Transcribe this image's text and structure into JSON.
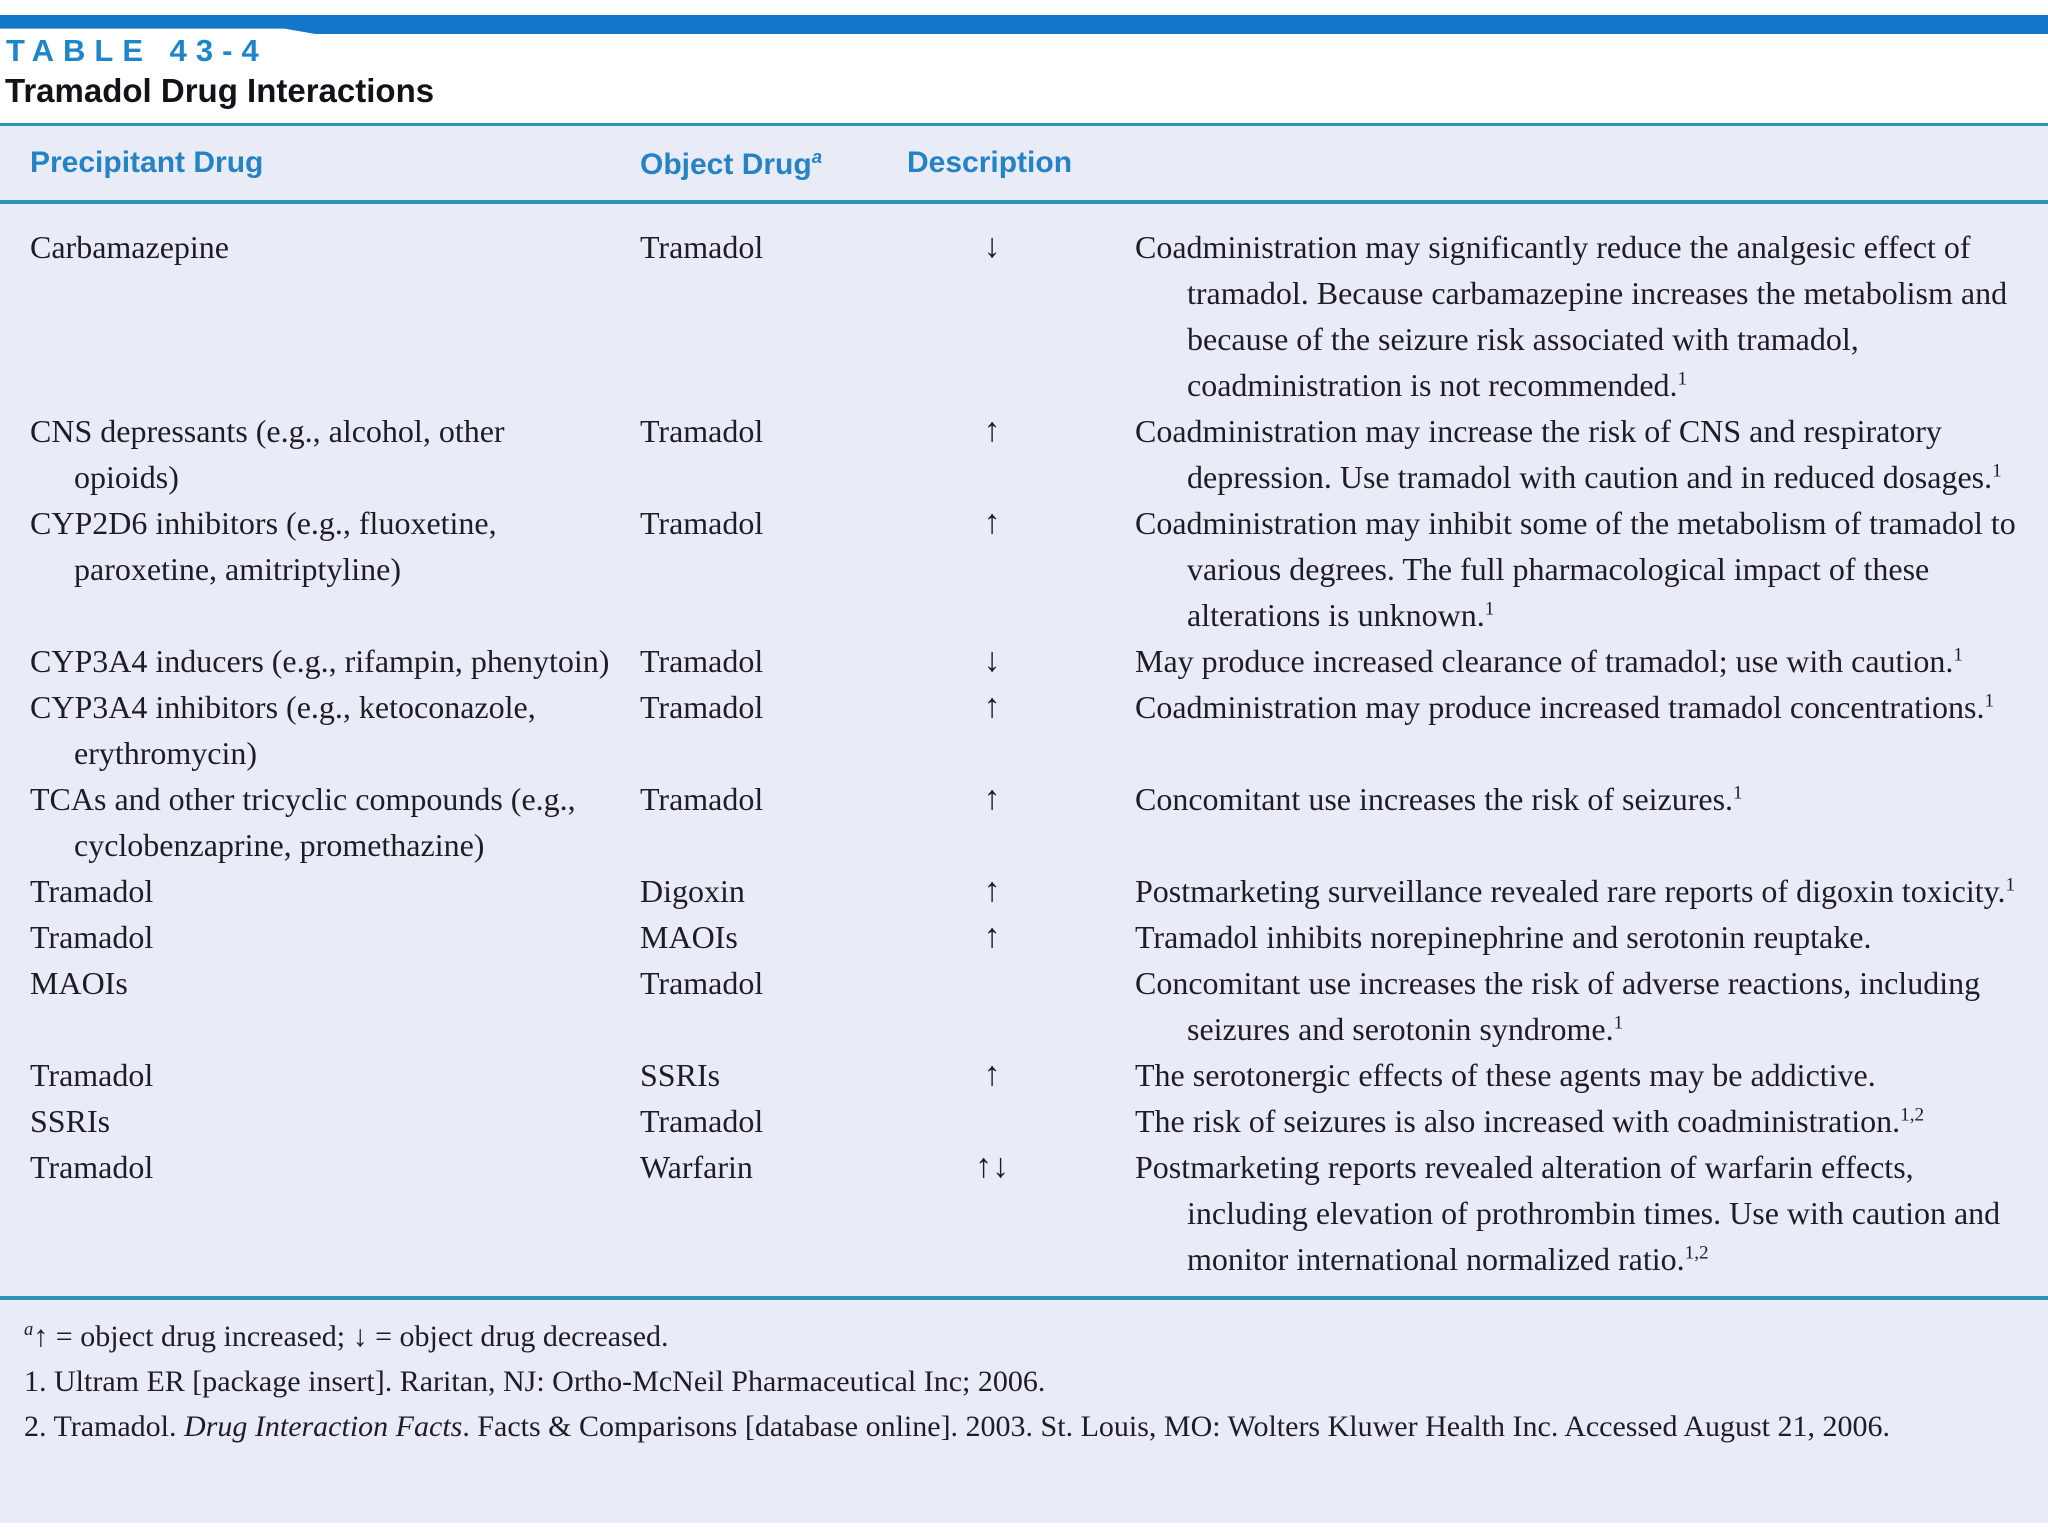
{
  "table": {
    "label": "TABLE 43-4",
    "title": "Tramadol Drug Interactions",
    "header": {
      "precipitant": "Precipitant Drug",
      "object": "Object Drug",
      "object_footnote_marker": "a",
      "description": "Description"
    },
    "rows": [
      {
        "precipitant": "Carbamazepine",
        "object": "Tramadol",
        "arrow": "↓",
        "description": "Coadministration may significantly reduce the analgesic effect of tramadol. Because carbamazepine increases the metabolism and because of the seizure risk associated with tramadol, coadministration is not recommended.",
        "refs": "1"
      },
      {
        "precipitant": "CNS depressants (e.g., alcohol, other opioids)",
        "object": "Tramadol",
        "arrow": "↑",
        "description": "Coadministration may increase the risk of CNS and respiratory depression. Use tramadol with caution and in reduced dosages.",
        "refs": "1"
      },
      {
        "precipitant": "CYP2D6 inhibitors (e.g., fluoxetine, paroxetine, amitriptyline)",
        "object": "Tramadol",
        "arrow": "↑",
        "description": "Coadministration may inhibit some of the metabolism of tramadol to various degrees. The full pharmacological impact of these alterations is unknown.",
        "refs": "1"
      },
      {
        "precipitant": "CYP3A4 inducers (e.g., rifampin, phenytoin)",
        "object": "Tramadol",
        "arrow": "↓",
        "description": "May produce increased clearance of tramadol; use with caution.",
        "refs": "1"
      },
      {
        "precipitant": "CYP3A4 inhibitors (e.g., ketoconazole, erythromycin)",
        "object": "Tramadol",
        "arrow": "↑",
        "description": "Coadministration may produce increased tramadol concentrations.",
        "refs": "1"
      },
      {
        "precipitant": "TCAs and other tricyclic compounds (e.g., cyclobenzaprine, promethazine)",
        "object": "Tramadol",
        "arrow": "↑",
        "description": "Concomitant use increases the risk of seizures.",
        "refs": "1"
      },
      {
        "precipitant": "Tramadol",
        "object": "Digoxin",
        "arrow": "↑",
        "description": "Postmarketing surveillance revealed rare reports of digoxin toxicity.",
        "refs": "1"
      },
      {
        "precipitant": "Tramadol",
        "object": "MAOIs",
        "arrow": "↑",
        "description": "Tramadol inhibits norepinephrine and serotonin reuptake.",
        "refs": ""
      },
      {
        "precipitant": "MAOIs",
        "object": "Tramadol",
        "arrow": "",
        "description": "Concomitant use increases the risk of adverse reactions, including seizures and serotonin syndrome.",
        "refs": "1"
      },
      {
        "precipitant": "Tramadol",
        "object": "SSRIs",
        "arrow": "↑",
        "description": "The serotonergic effects of these agents may be addictive.",
        "refs": ""
      },
      {
        "precipitant": "SSRIs",
        "object": "Tramadol",
        "arrow": "",
        "description": "The risk of seizures is also increased with coadministration.",
        "refs": "1,2"
      },
      {
        "precipitant": "Tramadol",
        "object": "Warfarin",
        "arrow": "↑↓",
        "description": "Postmarketing reports revealed alteration of warfarin effects, including elevation of prothrombin times. Use with caution and monitor international normalized ratio.",
        "refs": "1,2"
      }
    ],
    "footnotes": {
      "symbol_note": {
        "marker": "a",
        "text": "↑ = object drug increased; ↓ = object drug decreased."
      },
      "ref1": "1. Ultram ER [package insert]. Raritan, NJ: Ortho-McNeil Pharmaceutical Inc; 2006.",
      "ref2_prefix": "2. Tramadol. ",
      "ref2_italic": "Drug Interaction Facts",
      "ref2_suffix": ". Facts & Comparisons [database online]. 2003. St. Louis, MO: Wolters Kluwer Health Inc. Accessed August 21, 2006."
    },
    "colors": {
      "accent_blue": "#1277c8",
      "heading_blue": "#2583c5",
      "rule_teal": "#2e93b8",
      "sheet_background": "#e9ecf6",
      "body_text": "#1d1d28"
    }
  }
}
